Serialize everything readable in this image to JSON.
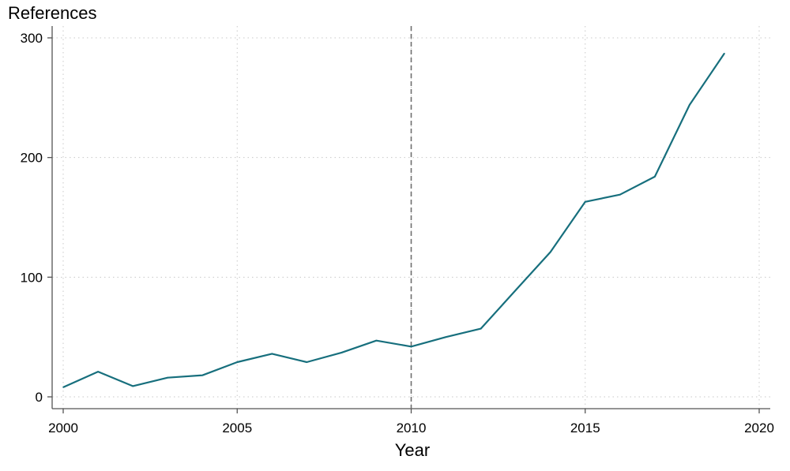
{
  "chart_data": {
    "type": "line",
    "title": "",
    "xlabel": "Year",
    "ylabel": "References",
    "xlim": [
      2000,
      2020
    ],
    "ylim": [
      0,
      300
    ],
    "xticks": [
      2000,
      2005,
      2010,
      2015,
      2020
    ],
    "yticks": [
      0,
      100,
      200,
      300
    ],
    "grid": true,
    "reference_line": {
      "x": 2010,
      "style": "dashed"
    },
    "series": [
      {
        "color": "#176f7d",
        "x": [
          2000,
          2001,
          2002,
          2003,
          2004,
          2005,
          2006,
          2007,
          2008,
          2009,
          2010,
          2011,
          2012,
          2013,
          2014,
          2015,
          2016,
          2017,
          2018,
          2019
        ],
        "y": [
          8,
          21,
          9,
          16,
          18,
          29,
          36,
          29,
          37,
          47,
          42,
          50,
          57,
          89,
          121,
          163,
          169,
          184,
          244,
          287
        ]
      }
    ]
  }
}
